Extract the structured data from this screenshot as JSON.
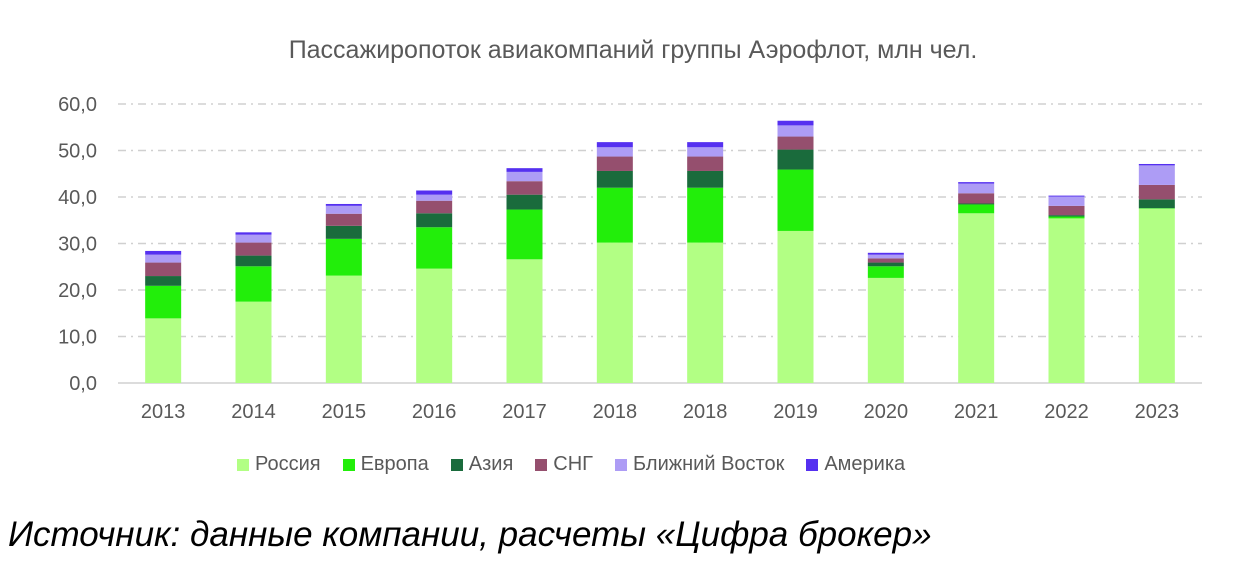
{
  "chart_data": {
    "type": "bar",
    "stacked": true,
    "title": "Пассажиропоток авиакомпаний группы Аэрофлот, млн чел.",
    "xlabel": "",
    "ylabel": "",
    "ylim": [
      0,
      60
    ],
    "yticks": [
      "0,0",
      "10,0",
      "20,0",
      "30,0",
      "40,0",
      "50,0",
      "60,0"
    ],
    "grid": true,
    "legend_position": "bottom",
    "categories": [
      "2013",
      "2014",
      "2015",
      "2016",
      "2017",
      "2018",
      "2018",
      "2019",
      "2020",
      "2021",
      "2022",
      "2023"
    ],
    "series": [
      {
        "name": "Россия",
        "color": "#b2ff84",
        "values": [
          13.9,
          17.5,
          23.1,
          24.6,
          26.6,
          30.2,
          30.2,
          32.7,
          22.6,
          36.5,
          35.4,
          37.5
        ]
      },
      {
        "name": "Европа",
        "color": "#22ee0a",
        "values": [
          7.0,
          7.6,
          7.9,
          8.9,
          10.7,
          11.8,
          11.8,
          13.2,
          2.5,
          1.9,
          0.4,
          0.1
        ]
      },
      {
        "name": "Азия",
        "color": "#1a6b3c",
        "values": [
          2.1,
          2.3,
          2.8,
          3.0,
          3.2,
          3.6,
          3.6,
          4.3,
          0.8,
          0.2,
          0.3,
          1.9
        ]
      },
      {
        "name": "СНГ",
        "color": "#954f6e",
        "values": [
          2.9,
          2.8,
          2.6,
          2.7,
          2.9,
          3.1,
          3.1,
          2.8,
          0.9,
          2.2,
          2.0,
          3.1
        ]
      },
      {
        "name": "Ближний Восток",
        "color": "#ad9cf5",
        "values": [
          1.7,
          1.7,
          1.7,
          1.3,
          2.0,
          2.0,
          2.0,
          2.4,
          0.8,
          2.1,
          2.0,
          4.2
        ]
      },
      {
        "name": "Америка",
        "color": "#5530f0",
        "values": [
          0.8,
          0.5,
          0.4,
          0.9,
          0.8,
          1.1,
          1.1,
          1.0,
          0.4,
          0.3,
          0.2,
          0.3
        ]
      }
    ]
  },
  "source": "Источник: данные компании, расчеты «Цифра брокер»"
}
